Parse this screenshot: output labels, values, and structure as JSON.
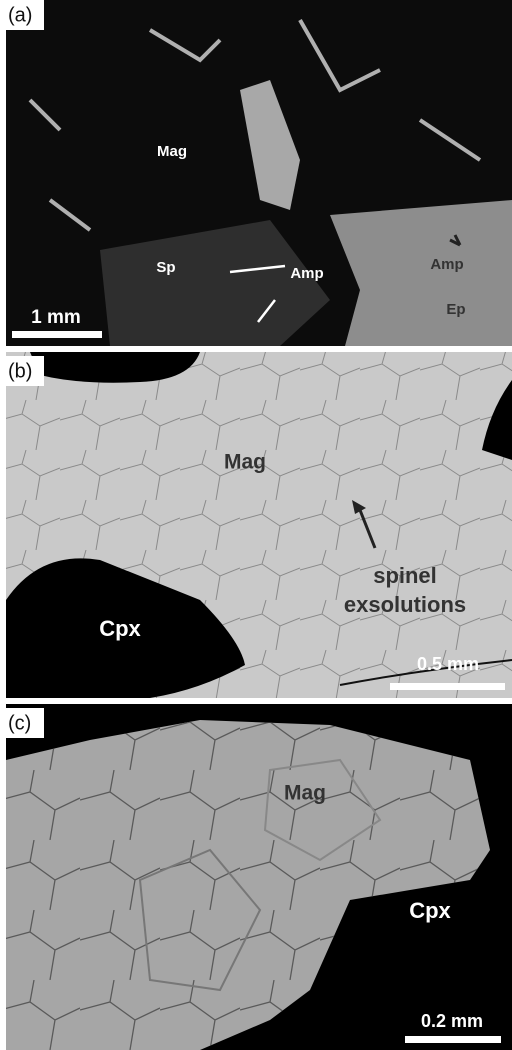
{
  "panels": [
    {
      "label": "(a)",
      "annotations": [
        "Mag",
        "Sp",
        "Amp",
        "Amp",
        "Ep"
      ],
      "scale_bar": "1 mm"
    },
    {
      "label": "(b)",
      "annotations": [
        "Mag",
        "spinel",
        "exsolutions",
        "Cpx"
      ],
      "scale_bar": "0.5 mm"
    },
    {
      "label": "(c)",
      "annotations": [
        "Mag",
        "Cpx"
      ],
      "scale_bar": "0.2 mm"
    }
  ]
}
